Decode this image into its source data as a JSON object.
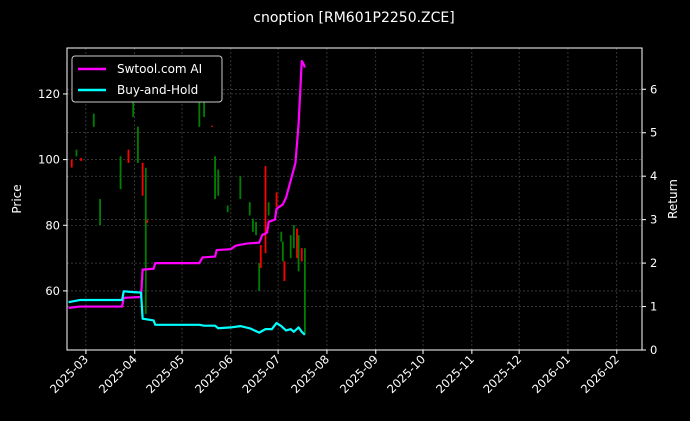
{
  "chart_data": {
    "type": "line",
    "title": "cnoption [RM601P2250.ZCE]",
    "ylabel": "Price",
    "ylabel_right": "Return",
    "xlabel": "",
    "xlim": [
      "2025-02-17",
      "2026-02-17"
    ],
    "ylim": [
      42,
      134
    ],
    "ylim_right": [
      0,
      6.95
    ],
    "grid": true,
    "legend_position": "top-left",
    "x_ticks": [
      "2025-03",
      "2025-04",
      "2025-05",
      "2025-06",
      "2025-07",
      "2025-08",
      "2025-09",
      "2025-10",
      "2025-11",
      "2025-12",
      "2026-01",
      "2026-02"
    ],
    "y_ticks": [
      60,
      80,
      100,
      120
    ],
    "y_ticks_right": [
      0,
      1,
      2,
      3,
      4,
      5,
      6
    ],
    "colors": {
      "background": "#000000",
      "up": "#008000",
      "down": "#ff0000"
    },
    "candles": [
      [
        "2025-02-20",
        100,
        100,
        97.6,
        97.6
      ],
      [
        "2025-02-23",
        101,
        103,
        101,
        103
      ],
      [
        "2025-02-26",
        100.5,
        100.5,
        99.6,
        99.6
      ],
      [
        "2025-03-06",
        110,
        114,
        110,
        114
      ],
      [
        "2025-03-10",
        80,
        88,
        80,
        88
      ],
      [
        "2025-03-23",
        91,
        101,
        91,
        101
      ],
      [
        "2025-03-28",
        103,
        103,
        99,
        99
      ],
      [
        "2025-03-31",
        113,
        118,
        113,
        118
      ],
      [
        "2025-04-03",
        99,
        110,
        99,
        110
      ],
      [
        "2025-04-06",
        99,
        99,
        89,
        89
      ],
      [
        "2025-04-08",
        53,
        97.5,
        53,
        97.5
      ],
      [
        "2025-04-09",
        81.5,
        81.5,
        80.8,
        80.8
      ],
      [
        "2025-05-12",
        110,
        121,
        110,
        121
      ],
      [
        "2025-05-15",
        113,
        118,
        113,
        118
      ],
      [
        "2025-05-20",
        110.3,
        110.3,
        110,
        110
      ],
      [
        "2025-05-22",
        88,
        101,
        88,
        101
      ],
      [
        "2025-05-24",
        89,
        97,
        89,
        97
      ],
      [
        "2025-05-30",
        84,
        86,
        84,
        86
      ],
      [
        "2025-06-07",
        88,
        95,
        88,
        95
      ],
      [
        "2025-06-13",
        83,
        87,
        83,
        87
      ],
      [
        "2025-06-15",
        78,
        82,
        78,
        82
      ],
      [
        "2025-06-17",
        77,
        81,
        77,
        81
      ],
      [
        "2025-06-19",
        60,
        68.5,
        60,
        68.5
      ],
      [
        "2025-06-20",
        74,
        74,
        67,
        67
      ],
      [
        "2025-06-23",
        98,
        98,
        71.5,
        71.5
      ],
      [
        "2025-06-25",
        83,
        87,
        83,
        87
      ],
      [
        "2025-06-30",
        90,
        90,
        85.6,
        85.6
      ],
      [
        "2025-07-03",
        75,
        78,
        75,
        78
      ],
      [
        "2025-07-04",
        69,
        75,
        69,
        75
      ],
      [
        "2025-07-05",
        69,
        69,
        63,
        63
      ],
      [
        "2025-07-09",
        70,
        77,
        70,
        77
      ],
      [
        "2025-07-11",
        73,
        80,
        73,
        80
      ],
      [
        "2025-07-13",
        79,
        79,
        70,
        70
      ],
      [
        "2025-07-14",
        66,
        77,
        66,
        77
      ],
      [
        "2025-07-16",
        73,
        73,
        69,
        69
      ],
      [
        "2025-07-18",
        47,
        73,
        47,
        73
      ]
    ],
    "series": [
      {
        "name": "Swtool.com AI",
        "color": "#ff00ff",
        "axis": "right",
        "points": [
          [
            "2025-02-18",
            0.97
          ],
          [
            "2025-02-25",
            1.0
          ],
          [
            "2025-03-24",
            1.0
          ],
          [
            "2025-03-25",
            1.2
          ],
          [
            "2025-04-05",
            1.22
          ],
          [
            "2025-04-06",
            1.85
          ],
          [
            "2025-04-13",
            1.87
          ],
          [
            "2025-04-14",
            2.0
          ],
          [
            "2025-05-12",
            2.0
          ],
          [
            "2025-05-14",
            2.13
          ],
          [
            "2025-05-22",
            2.15
          ],
          [
            "2025-05-23",
            2.3
          ],
          [
            "2025-06-01",
            2.32
          ],
          [
            "2025-06-04",
            2.4
          ],
          [
            "2025-06-11",
            2.45
          ],
          [
            "2025-06-19",
            2.47
          ],
          [
            "2025-06-21",
            2.65
          ],
          [
            "2025-06-24",
            2.7
          ],
          [
            "2025-06-25",
            2.95
          ],
          [
            "2025-06-29",
            3.0
          ],
          [
            "2025-06-30",
            3.25
          ],
          [
            "2025-07-04",
            3.35
          ],
          [
            "2025-07-06",
            3.5
          ],
          [
            "2025-07-09",
            3.9
          ],
          [
            "2025-07-12",
            4.3
          ],
          [
            "2025-07-14",
            5.2
          ],
          [
            "2025-07-15",
            5.9
          ],
          [
            "2025-07-16",
            6.65
          ],
          [
            "2025-07-17",
            6.6
          ],
          [
            "2025-07-18",
            6.5
          ]
        ]
      },
      {
        "name": "Buy-and-Hold",
        "color": "#00ffff",
        "axis": "right",
        "points": [
          [
            "2025-02-18",
            1.1
          ],
          [
            "2025-02-25",
            1.15
          ],
          [
            "2025-03-24",
            1.15
          ],
          [
            "2025-03-25",
            1.35
          ],
          [
            "2025-04-05",
            1.32
          ],
          [
            "2025-04-06",
            0.72
          ],
          [
            "2025-04-13",
            0.68
          ],
          [
            "2025-04-14",
            0.58
          ],
          [
            "2025-05-12",
            0.58
          ],
          [
            "2025-05-15",
            0.56
          ],
          [
            "2025-05-22",
            0.56
          ],
          [
            "2025-05-24",
            0.5
          ],
          [
            "2025-06-01",
            0.52
          ],
          [
            "2025-06-07",
            0.55
          ],
          [
            "2025-06-13",
            0.5
          ],
          [
            "2025-06-19",
            0.4
          ],
          [
            "2025-06-23",
            0.48
          ],
          [
            "2025-06-27",
            0.48
          ],
          [
            "2025-06-30",
            0.62
          ],
          [
            "2025-07-03",
            0.55
          ],
          [
            "2025-07-06",
            0.45
          ],
          [
            "2025-07-09",
            0.48
          ],
          [
            "2025-07-11",
            0.42
          ],
          [
            "2025-07-14",
            0.52
          ],
          [
            "2025-07-16",
            0.42
          ],
          [
            "2025-07-18",
            0.35
          ]
        ]
      }
    ]
  }
}
